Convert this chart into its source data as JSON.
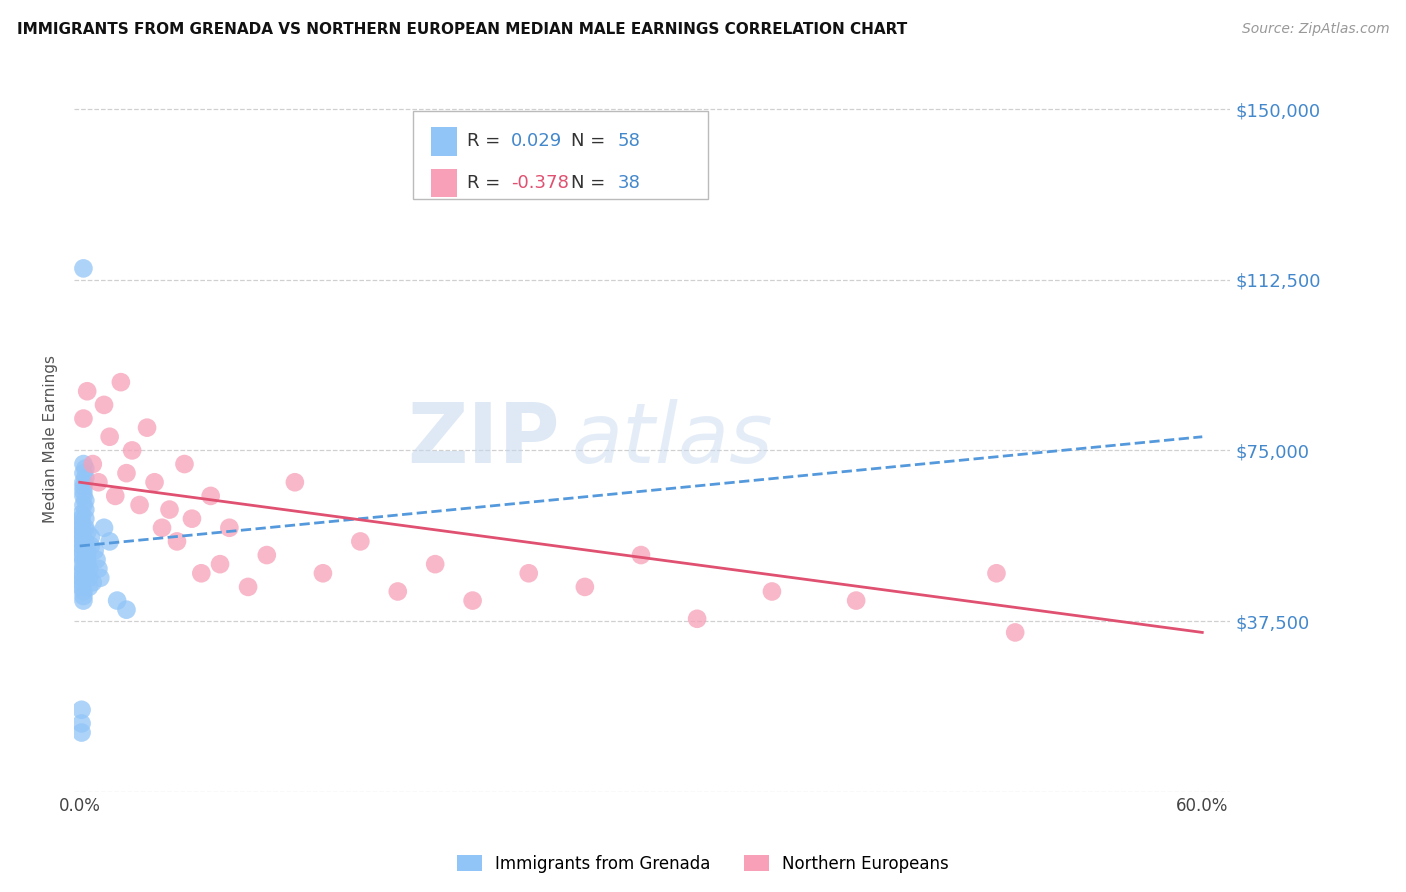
{
  "title": "IMMIGRANTS FROM GRENADA VS NORTHERN EUROPEAN MEDIAN MALE EARNINGS CORRELATION CHART",
  "source": "Source: ZipAtlas.com",
  "ylabel": "Median Male Earnings",
  "xlim": [
    -0.003,
    0.615
  ],
  "ylim": [
    0,
    155000
  ],
  "yticks": [
    0,
    37500,
    75000,
    112500,
    150000
  ],
  "ytick_labels": [
    "",
    "$37,500",
    "$75,000",
    "$112,500",
    "$150,000"
  ],
  "xticks": [
    0.0,
    0.1,
    0.2,
    0.3,
    0.4,
    0.5,
    0.6
  ],
  "xtick_labels": [
    "0.0%",
    "",
    "",
    "",
    "",
    "",
    "60.0%"
  ],
  "background_color": "#ffffff",
  "grid_color": "#d0d0d0",
  "series1_color": "#92c5f7",
  "series2_color": "#f7a0b8",
  "series1_label": "Immigrants from Grenada",
  "series2_label": "Northern Europeans",
  "series1_R": "0.029",
  "series1_N": "58",
  "series2_R": "-0.378",
  "series2_N": "38",
  "trend1_color": "#5599dd",
  "trend2_color": "#e05070",
  "color_highlight_blue": "#4488cc",
  "color_highlight_pink": "#e05070",
  "watermark_zip": "ZIP",
  "watermark_atlas": "atlas",
  "series1_x": [
    0.001,
    0.001,
    0.001,
    0.001,
    0.001,
    0.001,
    0.001,
    0.001,
    0.001,
    0.001,
    0.001,
    0.001,
    0.001,
    0.001,
    0.001,
    0.002,
    0.002,
    0.002,
    0.002,
    0.002,
    0.002,
    0.002,
    0.002,
    0.002,
    0.002,
    0.002,
    0.002,
    0.003,
    0.003,
    0.003,
    0.003,
    0.003,
    0.003,
    0.003,
    0.004,
    0.004,
    0.004,
    0.004,
    0.004,
    0.004,
    0.005,
    0.005,
    0.005,
    0.006,
    0.006,
    0.007,
    0.008,
    0.009,
    0.01,
    0.011,
    0.013,
    0.016,
    0.02,
    0.025,
    0.002,
    0.001,
    0.001,
    0.001
  ],
  "series1_y": [
    55000,
    58000,
    52000,
    60000,
    57000,
    53000,
    56000,
    61000,
    54000,
    59000,
    50000,
    48000,
    45000,
    47000,
    46000,
    49000,
    44000,
    43000,
    42000,
    51000,
    65000,
    63000,
    67000,
    70000,
    72000,
    68000,
    66000,
    64000,
    69000,
    71000,
    62000,
    58000,
    60000,
    55000,
    52000,
    50000,
    48000,
    57000,
    53000,
    51000,
    49000,
    47000,
    45000,
    56000,
    54000,
    46000,
    53000,
    51000,
    49000,
    47000,
    58000,
    55000,
    42000,
    40000,
    115000,
    18000,
    15000,
    13000
  ],
  "series2_x": [
    0.002,
    0.004,
    0.007,
    0.01,
    0.013,
    0.016,
    0.019,
    0.022,
    0.025,
    0.028,
    0.032,
    0.036,
    0.04,
    0.044,
    0.048,
    0.052,
    0.056,
    0.06,
    0.065,
    0.07,
    0.075,
    0.08,
    0.09,
    0.1,
    0.115,
    0.13,
    0.15,
    0.17,
    0.19,
    0.21,
    0.24,
    0.27,
    0.3,
    0.33,
    0.37,
    0.415,
    0.49,
    0.5
  ],
  "series2_y": [
    82000,
    88000,
    72000,
    68000,
    85000,
    78000,
    65000,
    90000,
    70000,
    75000,
    63000,
    80000,
    68000,
    58000,
    62000,
    55000,
    72000,
    60000,
    48000,
    65000,
    50000,
    58000,
    45000,
    52000,
    68000,
    48000,
    55000,
    44000,
    50000,
    42000,
    48000,
    45000,
    52000,
    38000,
    44000,
    42000,
    48000,
    35000
  ],
  "trend1_x0": 0.0,
  "trend1_x1": 0.6,
  "trend1_y0": 54000,
  "trend1_y1": 78000,
  "trend2_x0": 0.0,
  "trend2_x1": 0.6,
  "trend2_y0": 68000,
  "trend2_y1": 35000
}
